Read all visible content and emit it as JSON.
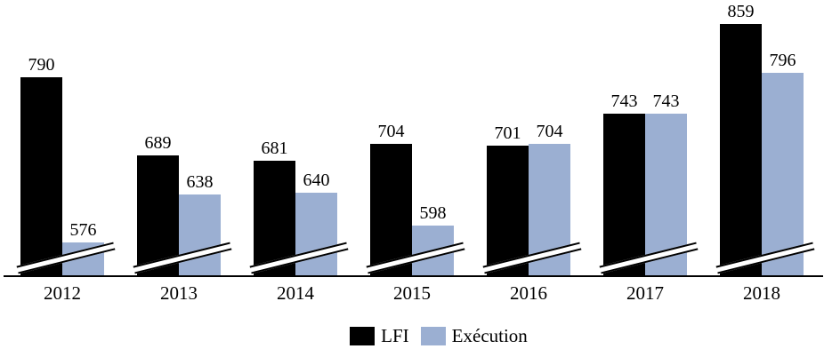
{
  "chart_data": {
    "type": "bar",
    "title": "",
    "xlabel": "",
    "ylabel": "",
    "categories": [
      "2012",
      "2013",
      "2014",
      "2015",
      "2016",
      "2017",
      "2018"
    ],
    "series": [
      {
        "name": "LFI",
        "color": "#000000",
        "values": [
          790,
          689,
          681,
          704,
          701,
          743,
          859
        ]
      },
      {
        "name": "Exécution",
        "color": "#9bafd2",
        "values": [
          576,
          638,
          640,
          598,
          704,
          743,
          796
        ]
      }
    ],
    "ylim": [
      533,
      890
    ],
    "axis_break": true,
    "grid": false,
    "legend_position": "bottom",
    "value_labels": true
  }
}
